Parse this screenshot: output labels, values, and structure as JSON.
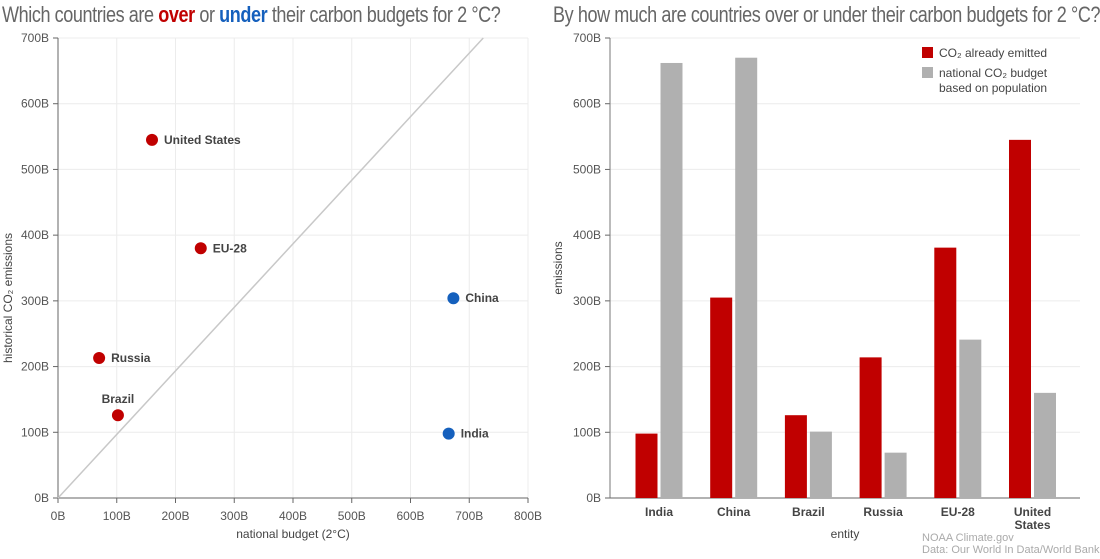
{
  "left": {
    "title_parts": [
      "Which countries are ",
      "over",
      " or ",
      "under",
      " their carbon budgets for 2 °C?"
    ],
    "chart_data": {
      "type": "scatter",
      "xlabel": "national budget (2°C)",
      "ylabel": "historical CO₂ emissions",
      "xlim": [
        0,
        800
      ],
      "ylim": [
        0,
        700
      ],
      "unit": "B",
      "xticks": [
        "0B",
        "100B",
        "200B",
        "300B",
        "400B",
        "500B",
        "600B",
        "700B",
        "800B"
      ],
      "yticks": [
        "0B",
        "100B",
        "200B",
        "300B",
        "400B",
        "500B",
        "600B",
        "700B"
      ],
      "grid": true,
      "reference_line": "y = x",
      "points": [
        {
          "label": "United States",
          "x": 160,
          "y": 545,
          "status": "over"
        },
        {
          "label": "EU-28",
          "x": 243,
          "y": 380,
          "status": "over"
        },
        {
          "label": "Russia",
          "x": 70,
          "y": 213,
          "status": "over"
        },
        {
          "label": "Brazil",
          "x": 102,
          "y": 126,
          "status": "over"
        },
        {
          "label": "China",
          "x": 673,
          "y": 304,
          "status": "under"
        },
        {
          "label": "India",
          "x": 665,
          "y": 98,
          "status": "under"
        }
      ],
      "colors": {
        "over": "#c00000",
        "under": "#1560bd"
      }
    }
  },
  "right": {
    "title": "By how much are countries over or under their carbon budgets for 2 °C?",
    "chart_data": {
      "type": "bar",
      "xlabel": "entity",
      "ylabel": "emissions",
      "ylim": [
        0,
        700
      ],
      "unit": "B",
      "yticks": [
        "0B",
        "100B",
        "200B",
        "300B",
        "400B",
        "500B",
        "600B",
        "700B"
      ],
      "grid": true,
      "legend_position": "top-right",
      "categories": [
        "India",
        "China",
        "Brazil",
        "Russia",
        "EU-28",
        "United States"
      ],
      "category_lines": [
        [
          "India"
        ],
        [
          "China"
        ],
        [
          "Brazil"
        ],
        [
          "Russia"
        ],
        [
          "EU-28"
        ],
        [
          "United",
          "States"
        ]
      ],
      "series": [
        {
          "name": "CO₂ already emitted",
          "color": "#c00000",
          "values": [
            98,
            305,
            126,
            214,
            381,
            545
          ]
        },
        {
          "name": "national CO₂ budget based on population",
          "legend_lines": [
            "national CO₂ budget",
            "based on population"
          ],
          "color": "#b0b0b0",
          "values": [
            662,
            670,
            101,
            69,
            241,
            160
          ]
        }
      ]
    }
  },
  "credit": {
    "line1": "NOAA Climate.gov",
    "line2": "Data: Our World In Data/World Bank"
  }
}
